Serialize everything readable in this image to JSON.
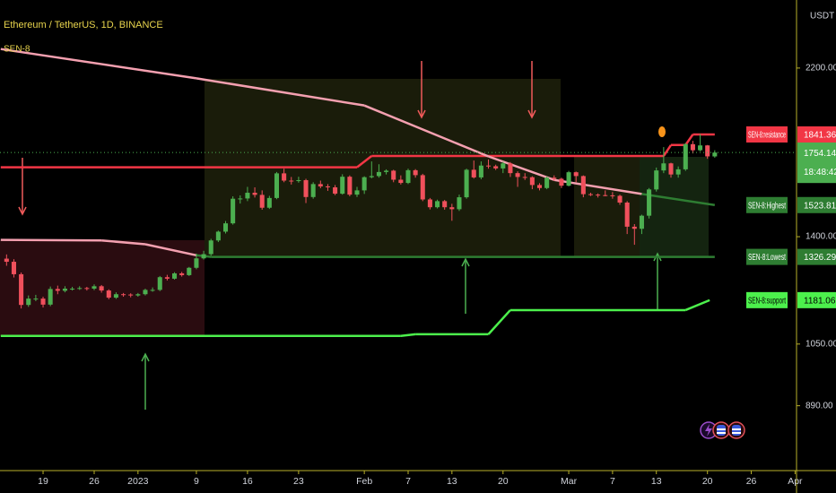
{
  "chart_data": {
    "type": "candlestick",
    "title": "Ethereum / TetherUS, 1D, BINANCE",
    "subtitle": "SEN-8",
    "y_label": "USDT",
    "yscale": "log",
    "ylim": [
      748,
      2640
    ],
    "yticks": [
      {
        "value": 2200,
        "label": "2200.00"
      },
      {
        "value": 1400,
        "label": "1400.00"
      },
      {
        "value": 1050,
        "label": "1050.00"
      },
      {
        "value": 890,
        "label": "890.00"
      }
    ],
    "xlim": [
      0.1,
      109.2
    ],
    "xticks": [
      {
        "value": 6,
        "label": "19"
      },
      {
        "value": 13,
        "label": "26"
      },
      {
        "value": 19,
        "label": "2023"
      },
      {
        "value": 27,
        "label": "9"
      },
      {
        "value": 34,
        "label": "16"
      },
      {
        "value": 41,
        "label": "23"
      },
      {
        "value": 50,
        "label": "Feb"
      },
      {
        "value": 56,
        "label": "7"
      },
      {
        "value": 62,
        "label": "13"
      },
      {
        "value": 69,
        "label": "20"
      },
      {
        "value": 78,
        "label": "Mar"
      },
      {
        "value": 84,
        "label": "7"
      },
      {
        "value": 90,
        "label": "13"
      },
      {
        "value": 97,
        "label": "20"
      },
      {
        "value": 103,
        "label": "26"
      },
      {
        "value": 109,
        "label": "Apr"
      }
    ],
    "up_color": "#4caf50",
    "down_color": "#f0505c",
    "countdown": "18:48:42",
    "x": [
      1,
      2,
      3,
      4,
      5,
      6,
      7,
      8,
      9,
      10,
      11,
      12,
      13,
      14,
      15,
      16,
      17,
      18,
      19,
      20,
      21,
      22,
      23,
      24,
      25,
      26,
      27,
      28,
      29,
      30,
      31,
      32,
      33,
      34,
      35,
      36,
      37,
      38,
      39,
      40,
      41,
      42,
      43,
      44,
      45,
      46,
      47,
      48,
      49,
      50,
      51,
      52,
      53,
      54,
      55,
      56,
      57,
      58,
      59,
      60,
      61,
      62,
      63,
      64,
      65,
      66,
      67,
      68,
      69,
      70,
      71,
      72,
      73,
      74,
      75,
      76,
      77,
      78,
      79,
      80,
      81,
      82,
      83,
      84,
      85,
      86,
      87,
      88,
      89,
      90,
      91,
      92,
      93,
      94,
      95,
      96,
      97,
      98
    ],
    "open": [
      1320,
      1309,
      1266,
      1166,
      1186,
      1186,
      1167,
      1217,
      1211,
      1218,
      1218,
      1220,
      1218,
      1226,
      1212,
      1189,
      1200,
      1199,
      1196,
      1200,
      1214,
      1214,
      1256,
      1251,
      1269,
      1263,
      1288,
      1321,
      1336,
      1386,
      1419,
      1451,
      1550,
      1551,
      1575,
      1566,
      1513,
      1553,
      1659,
      1627,
      1626,
      1629,
      1557,
      1612,
      1602,
      1598,
      1571,
      1644,
      1567,
      1585,
      1642,
      1647,
      1665,
      1671,
      1631,
      1617,
      1673,
      1651,
      1547,
      1515,
      1540,
      1515,
      1507,
      1556,
      1675,
      1641,
      1694,
      1691,
      1681,
      1704,
      1660,
      1643,
      1642,
      1608,
      1595,
      1640,
      1635,
      1605,
      1664,
      1647,
      1569,
      1567,
      1565,
      1564,
      1562,
      1534,
      1438,
      1430,
      1481,
      1589,
      1672,
      1704,
      1654,
      1677,
      1794,
      1765,
      1788,
      1736
    ],
    "high": [
      1335,
      1318,
      1272,
      1196,
      1198,
      1192,
      1225,
      1228,
      1226,
      1224,
      1226,
      1224,
      1232,
      1230,
      1216,
      1206,
      1204,
      1203,
      1204,
      1218,
      1222,
      1260,
      1264,
      1273,
      1274,
      1291,
      1338,
      1348,
      1392,
      1423,
      1460,
      1560,
      1564,
      1600,
      1598,
      1585,
      1562,
      1665,
      1680,
      1643,
      1644,
      1635,
      1620,
      1627,
      1612,
      1608,
      1655,
      1650,
      1600,
      1646,
      1713,
      1700,
      1677,
      1675,
      1650,
      1680,
      1678,
      1657,
      1553,
      1546,
      1545,
      1529,
      1567,
      1680,
      1717,
      1713,
      1722,
      1698,
      1712,
      1710,
      1668,
      1660,
      1646,
      1616,
      1645,
      1650,
      1640,
      1670,
      1667,
      1650,
      1575,
      1572,
      1585,
      1578,
      1567,
      1540,
      1448,
      1485,
      1595,
      1685,
      1780,
      1707,
      1690,
      1800,
      1810,
      1843,
      1790,
      1765
    ],
    "low": [
      1295,
      1255,
      1155,
      1160,
      1178,
      1158,
      1162,
      1200,
      1206,
      1212,
      1214,
      1212,
      1213,
      1205,
      1184,
      1185,
      1192,
      1190,
      1192,
      1196,
      1208,
      1210,
      1245,
      1248,
      1258,
      1260,
      1283,
      1317,
      1330,
      1380,
      1412,
      1446,
      1530,
      1540,
      1555,
      1505,
      1508,
      1548,
      1620,
      1610,
      1618,
      1532,
      1550,
      1594,
      1583,
      1565,
      1567,
      1560,
      1557,
      1570,
      1637,
      1640,
      1654,
      1620,
      1610,
      1612,
      1640,
      1540,
      1506,
      1510,
      1505,
      1461,
      1500,
      1550,
      1636,
      1633,
      1680,
      1674,
      1660,
      1643,
      1600,
      1630,
      1590,
      1585,
      1590,
      1626,
      1595,
      1602,
      1620,
      1556,
      1561,
      1555,
      1560,
      1550,
      1525,
      1410,
      1370,
      1410,
      1470,
      1580,
      1660,
      1640,
      1640,
      1670,
      1750,
      1760,
      1725,
      1730
    ],
    "close": [
      1309,
      1266,
      1166,
      1186,
      1186,
      1167,
      1217,
      1211,
      1218,
      1218,
      1220,
      1218,
      1226,
      1212,
      1189,
      1200,
      1199,
      1196,
      1200,
      1214,
      1214,
      1256,
      1251,
      1269,
      1263,
      1288,
      1321,
      1336,
      1386,
      1419,
      1451,
      1550,
      1551,
      1575,
      1566,
      1513,
      1553,
      1659,
      1627,
      1626,
      1629,
      1557,
      1612,
      1602,
      1598,
      1571,
      1644,
      1567,
      1585,
      1642,
      1647,
      1665,
      1671,
      1631,
      1617,
      1673,
      1651,
      1547,
      1515,
      1540,
      1515,
      1507,
      1556,
      1675,
      1641,
      1694,
      1691,
      1681,
      1704,
      1660,
      1643,
      1642,
      1608,
      1595,
      1640,
      1635,
      1605,
      1664,
      1647,
      1569,
      1567,
      1565,
      1564,
      1562,
      1534,
      1438,
      1430,
      1481,
      1589,
      1672,
      1704,
      1654,
      1677,
      1794,
      1765,
      1788,
      1736,
      1754.14
    ],
    "series": [
      {
        "name": "SEN-8:resistance",
        "color": "#f23645",
        "segment_colors": [
          "#f23645",
          "#f23645",
          "#f23645",
          "#f23645",
          "#f23645",
          "#f23645",
          "#f23645"
        ],
        "badge_color": "#f23645",
        "badge_text_color": "#ffffff",
        "x": [
          0.2,
          49,
          51,
          91,
          92,
          94,
          95,
          98
        ],
        "values": [
          1686,
          1686,
          1738,
          1738,
          1790,
          1790,
          1841.36,
          1841.36
        ]
      },
      {
        "name": "SEN-8:Highest",
        "color": "#f4a0b0",
        "segment_colors": [
          "#f4a0b0",
          "#f4a0b0",
          "#f4a0b0",
          "#f4a0b0",
          "#f4a0b0",
          "#2e7d32"
        ],
        "badge_color": "#2e7d32",
        "badge_text_color": "#ffffff",
        "x": [
          0.2,
          27,
          50,
          67,
          76,
          88,
          98
        ],
        "values": [
          2315,
          2140,
          1990,
          1736,
          1630,
          1570,
          1523.81
        ]
      },
      {
        "name": "SEN-8:Lowest",
        "color": "#f4a0b0",
        "segment_colors": [
          "#f4a0b0",
          "#f4a0b0",
          "#f4a0b0",
          "#2e7d32",
          "#2e7d32"
        ],
        "badge_color": "#2e7d32",
        "badge_text_color": "#ffffff",
        "x": [
          0.2,
          14,
          20,
          27,
          29,
          98
        ],
        "values": [
          1388,
          1386,
          1372,
          1332,
          1326.29,
          1326.29
        ]
      },
      {
        "name": "SEN-8:support",
        "color": "#4cf04c",
        "segment_colors": [
          "#4cf04c",
          "#4cf04c",
          "#4cf04c",
          "#4cf04c",
          "#4cf04c",
          "#4cf04c"
        ],
        "badge_color": "#4cf04c",
        "badge_text_color": "#000000",
        "x": [
          0.2,
          55,
          57,
          67,
          70,
          94,
          97.3
        ],
        "values": [
          1073,
          1073,
          1078,
          1078,
          1150,
          1150,
          1181.06
        ]
      }
    ]
  }
}
